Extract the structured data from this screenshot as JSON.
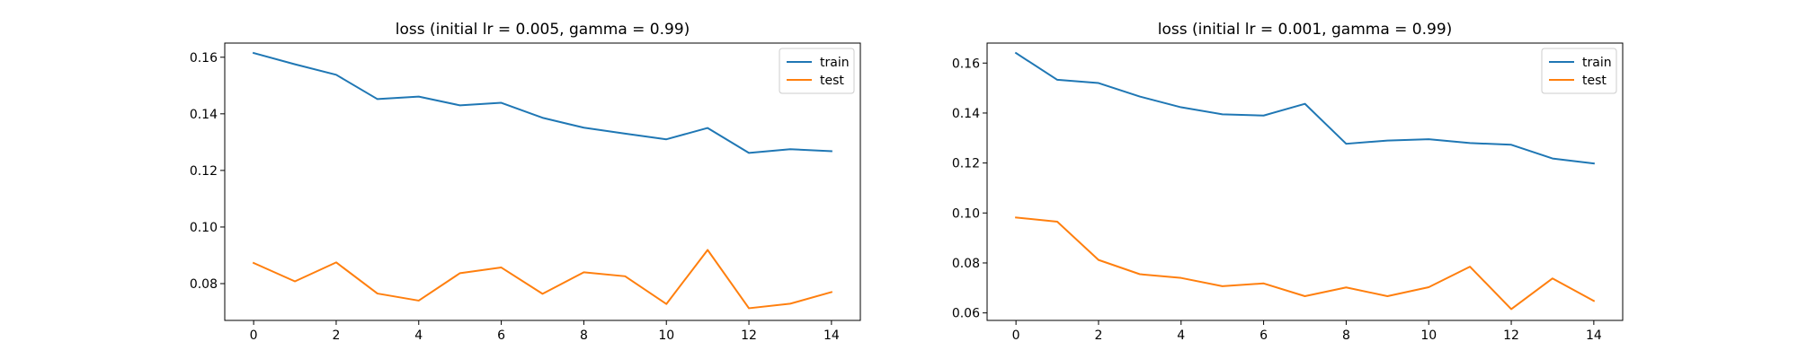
{
  "chart_data": [
    {
      "type": "line",
      "title": "loss (initial lr = 0.005, gamma = 0.99)",
      "xlabel": "",
      "ylabel": "",
      "x": [
        0,
        1,
        2,
        3,
        4,
        5,
        6,
        7,
        8,
        9,
        10,
        11,
        12,
        13,
        14
      ],
      "xlim": [
        -0.7,
        14.7
      ],
      "ylim": [
        0.067,
        0.165
      ],
      "xticks": [
        0,
        2,
        4,
        6,
        8,
        10,
        12,
        14
      ],
      "yticks": [
        0.08,
        0.1,
        0.12,
        0.14,
        0.16
      ],
      "ytick_labels": [
        "0.08",
        "0.10",
        "0.12",
        "0.14",
        "0.16"
      ],
      "grid": false,
      "legend_position": "top-right",
      "series": [
        {
          "name": "train",
          "color": "#1f77b4",
          "values": [
            0.1615,
            0.1575,
            0.1538,
            0.1452,
            0.1461,
            0.143,
            0.1439,
            0.1386,
            0.1351,
            0.133,
            0.131,
            0.135,
            0.1262,
            0.1275,
            0.1268
          ]
        },
        {
          "name": "test",
          "color": "#ff7f0e",
          "values": [
            0.0873,
            0.0808,
            0.0875,
            0.0765,
            0.074,
            0.0837,
            0.0857,
            0.0764,
            0.084,
            0.0826,
            0.0728,
            0.0919,
            0.0713,
            0.0729,
            0.077
          ]
        }
      ]
    },
    {
      "type": "line",
      "title": "loss (initial lr = 0.001, gamma = 0.99)",
      "xlabel": "",
      "ylabel": "",
      "x": [
        0,
        1,
        2,
        3,
        4,
        5,
        6,
        7,
        8,
        9,
        10,
        11,
        12,
        13,
        14
      ],
      "xlim": [
        -0.7,
        14.7
      ],
      "ylim": [
        0.057,
        0.168
      ],
      "xticks": [
        0,
        2,
        4,
        6,
        8,
        10,
        12,
        14
      ],
      "yticks": [
        0.06,
        0.08,
        0.1,
        0.12,
        0.14,
        0.16
      ],
      "ytick_labels": [
        "0.06",
        "0.08",
        "0.10",
        "0.12",
        "0.14",
        "0.16"
      ],
      "grid": false,
      "legend_position": "top-right",
      "series": [
        {
          "name": "train",
          "color": "#1f77b4",
          "values": [
            0.164,
            0.1533,
            0.152,
            0.1466,
            0.1423,
            0.1395,
            0.139,
            0.1437,
            0.1277,
            0.129,
            0.1295,
            0.128,
            0.1273,
            0.1218,
            0.1198
          ]
        },
        {
          "name": "test",
          "color": "#ff7f0e",
          "values": [
            0.0982,
            0.0965,
            0.0812,
            0.0755,
            0.074,
            0.0707,
            0.0718,
            0.0667,
            0.0702,
            0.0667,
            0.0703,
            0.0785,
            0.0615,
            0.0738,
            0.0648
          ]
        }
      ]
    }
  ]
}
